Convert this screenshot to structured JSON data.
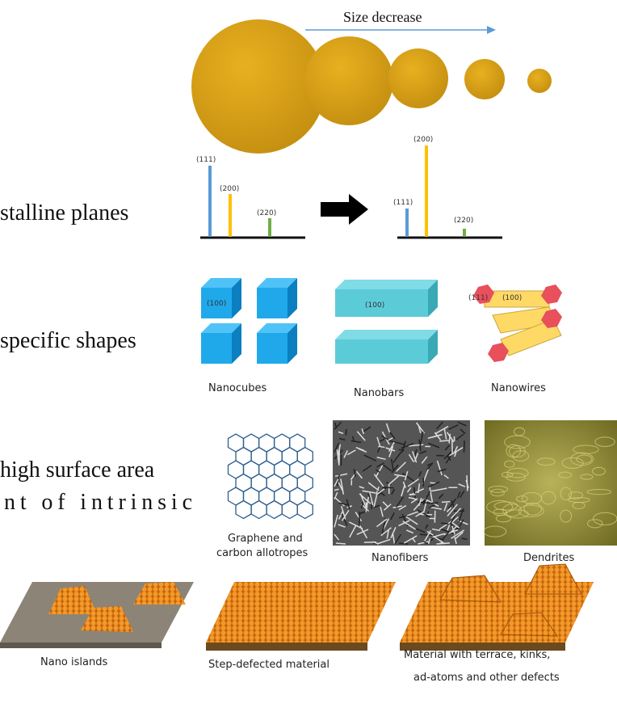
{
  "size_label": "Size decrease",
  "planes": {
    "caption": "stalline planes",
    "before": [
      "(111)",
      "(200)",
      "(220)"
    ],
    "after": [
      "(200)",
      "(111)",
      "(220)"
    ]
  },
  "shapes": {
    "caption": "specific shapes",
    "cube_face": "(100)",
    "bar_face": "(100)",
    "wire_faces": [
      "(111)",
      "(100)"
    ],
    "labels": [
      "Nanocubes",
      "Nanobars",
      "Nanowires"
    ]
  },
  "surface": {
    "caption_lines": [
      "high surface area",
      "nt of intrinsic"
    ],
    "labels": [
      [
        "Graphene and",
        "carbon allotropes"
      ],
      "Nanofibers",
      "Dendrites"
    ]
  },
  "defects": {
    "labels": [
      "Nano islands",
      "Step-defected material",
      [
        "Material with terrace, kinks,",
        "ad-atoms and other defects"
      ]
    ]
  }
}
